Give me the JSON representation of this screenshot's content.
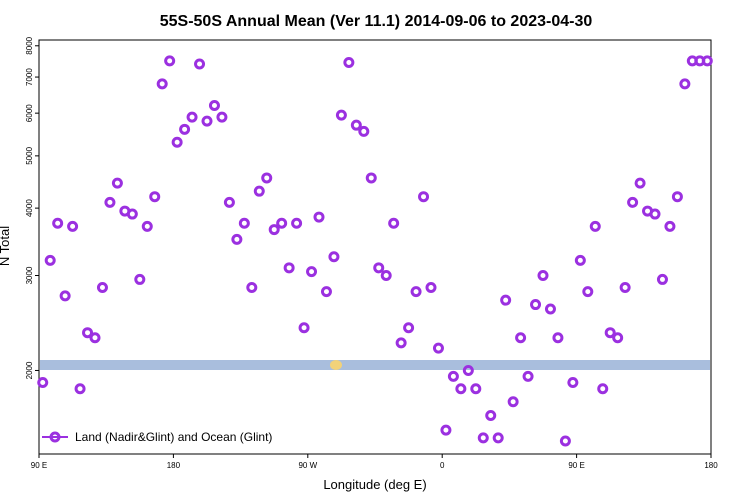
{
  "chart_data": {
    "type": "scatter",
    "title": "55S-50S Annual Mean (Ver 11.1)   2014-09-06 to 2023-04-30",
    "xlabel": "Longitude (deg E)",
    "ylabel": "N Total",
    "xlim": [
      90,
      270
    ],
    "ylim": [
      1400,
      8200
    ],
    "yscale": "log",
    "x_ticks": [
      {
        "value": 90,
        "label": "90 E"
      },
      {
        "value": 126,
        "label": "180"
      },
      {
        "value": 162,
        "label": "90 W"
      },
      {
        "value": 198,
        "label": "0"
      },
      {
        "value": 234,
        "label": "90 E"
      },
      {
        "value": 270,
        "label": "180"
      }
    ],
    "y_ticks": [
      {
        "value": 2000,
        "label": "2000"
      },
      {
        "value": 3000,
        "label": "3000"
      },
      {
        "value": 4000,
        "label": "4000"
      },
      {
        "value": 5000,
        "label": "5000"
      },
      {
        "value": 6000,
        "label": "6000"
      },
      {
        "value": 7000,
        "label": "7000"
      },
      {
        "value": 8000,
        "label": "8000"
      }
    ],
    "legend": {
      "position": "bottom-left",
      "entries": [
        "Land (Nadir&Glint) and Ocean (Glint)"
      ]
    },
    "colors": {
      "series": "#9b30e0",
      "band": "#a9bedd",
      "band_land": "#f2d27a"
    },
    "series": [
      {
        "name": "Land (Nadir&Glint) and Ocean (Glint)",
        "x": [
          91,
          93,
          95,
          97,
          99,
          101,
          103,
          105,
          107,
          109,
          111,
          113,
          115,
          117,
          119,
          121,
          123,
          125,
          127,
          129,
          131,
          133,
          135,
          137,
          139,
          141,
          143,
          145,
          147,
          149,
          151,
          153,
          155,
          157,
          159,
          161,
          163,
          165,
          167,
          169,
          171,
          173,
          175,
          177,
          179,
          181,
          183,
          185,
          187,
          189,
          191,
          193,
          195,
          197,
          199,
          201,
          203,
          205,
          207,
          209,
          211,
          213,
          215,
          217,
          219,
          221,
          223,
          225,
          227,
          229,
          231,
          233,
          235,
          237,
          239,
          241,
          243,
          245,
          247,
          249,
          251,
          253,
          255,
          257,
          259,
          261,
          263,
          265,
          267,
          269
        ],
        "y": [
          1900,
          3200,
          3750,
          2750,
          3700,
          1850,
          2350,
          2300,
          2850,
          4100,
          4450,
          3950,
          3900,
          2950,
          3700,
          4200,
          6800,
          7500,
          5300,
          5600,
          5900,
          7400,
          5800,
          6200,
          5900,
          4100,
          3500,
          3750,
          2850,
          4300,
          4550,
          3650,
          3750,
          3100,
          3750,
          2400,
          3050,
          3850,
          2800,
          3250,
          5950,
          7450,
          5700,
          5550,
          4550,
          3100,
          3000,
          3750,
          2250,
          2400,
          2800,
          4200,
          2850,
          2200,
          1550,
          1950,
          1850,
          2000,
          1850,
          1500,
          1650,
          1500,
          2700,
          1750,
          2300,
          1950,
          2650,
          3000,
          2600,
          2300,
          1480,
          1900,
          3200,
          2800,
          3700,
          1850,
          2350,
          2300,
          2850,
          4100,
          4450,
          3950,
          3900,
          2950,
          3700,
          4200,
          6800,
          7500,
          7500,
          7500
        ]
      }
    ]
  }
}
